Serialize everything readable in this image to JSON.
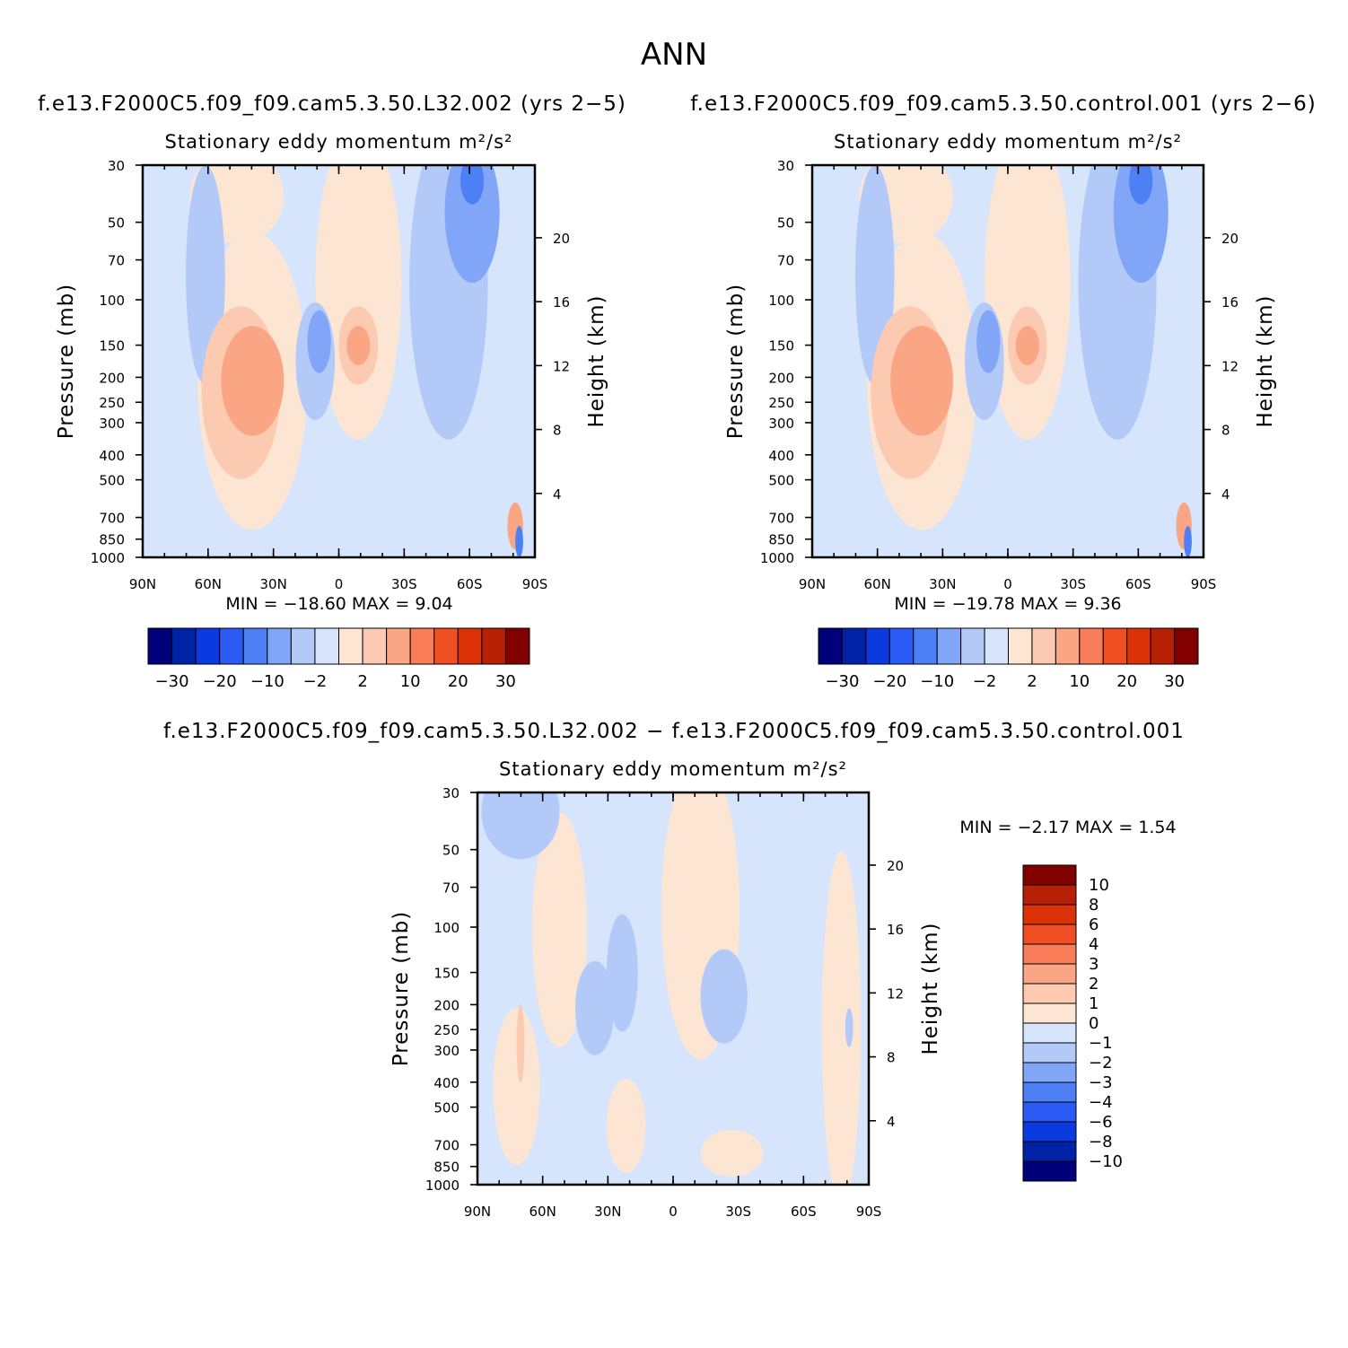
{
  "figure_title": "ANN",
  "chart_data": [
    {
      "type": "heatmap",
      "id": "panel-a",
      "title": "f.e13.F2000C5.f09_f09.cam5.3.50.L32.002 (yrs 2-5)",
      "subtitle": "Stationary eddy momentum",
      "units": "m²/s²",
      "xlabel": "",
      "ylabel": "Pressure (mb)",
      "y2label": "Height (km)",
      "x_ticks": [
        "90N",
        "60N",
        "30N",
        "0",
        "30S",
        "60S",
        "90S"
      ],
      "y_ticks": [
        30,
        50,
        70,
        100,
        150,
        200,
        250,
        300,
        400,
        500,
        700,
        850,
        1000
      ],
      "y2_ticks": [
        4,
        8,
        12,
        16,
        20
      ],
      "ylim": [
        1000,
        30
      ],
      "y_scale": "log",
      "min_text": "MIN = -18.60",
      "max_text": "MAX = 9.04",
      "min": -18.6,
      "max": 9.04,
      "colorbar": {
        "orientation": "horizontal",
        "levels": [
          -30,
          -25,
          -20,
          -15,
          -10,
          -5,
          -2,
          0,
          2,
          5,
          10,
          15,
          20,
          25,
          30
        ],
        "tick_labels": [
          "-30",
          "-20",
          "-10",
          "-2",
          "2",
          "10",
          "20",
          "30"
        ]
      }
    },
    {
      "type": "heatmap",
      "id": "panel-b",
      "title": "f.e13.F2000C5.f09_f09.cam5.3.50.control.001 (yrs 2-6)",
      "subtitle": "Stationary eddy momentum",
      "units": "m²/s²",
      "xlabel": "",
      "ylabel": "Pressure (mb)",
      "y2label": "Height (km)",
      "x_ticks": [
        "90N",
        "60N",
        "30N",
        "0",
        "30S",
        "60S",
        "90S"
      ],
      "y_ticks": [
        30,
        50,
        70,
        100,
        150,
        200,
        250,
        300,
        400,
        500,
        700,
        850,
        1000
      ],
      "y2_ticks": [
        4,
        8,
        12,
        16,
        20
      ],
      "ylim": [
        1000,
        30
      ],
      "y_scale": "log",
      "min_text": "MIN = -19.78",
      "max_text": "MAX = 9.36",
      "min": -19.78,
      "max": 9.36,
      "colorbar": {
        "orientation": "horizontal",
        "levels": [
          -30,
          -25,
          -20,
          -15,
          -10,
          -5,
          -2,
          0,
          2,
          5,
          10,
          15,
          20,
          25,
          30
        ],
        "tick_labels": [
          "-30",
          "-20",
          "-10",
          "-2",
          "2",
          "10",
          "20",
          "30"
        ]
      }
    },
    {
      "type": "heatmap",
      "id": "panel-diff",
      "title": "f.e13.F2000C5.f09_f09.cam5.3.50.L32.002 - f.e13.F2000C5.f09_f09.cam5.3.50.control.001",
      "subtitle": "Stationary eddy momentum",
      "units": "m²/s²",
      "xlabel": "",
      "ylabel": "Pressure (mb)",
      "y2label": "Height (km)",
      "x_ticks": [
        "90N",
        "60N",
        "30N",
        "0",
        "30S",
        "60S",
        "90S"
      ],
      "y_ticks": [
        30,
        50,
        70,
        100,
        150,
        200,
        250,
        300,
        400,
        500,
        700,
        850,
        1000
      ],
      "y2_ticks": [
        4,
        8,
        12,
        16,
        20
      ],
      "ylim": [
        1000,
        30
      ],
      "y_scale": "log",
      "min_text": "MIN = -2.17",
      "max_text": "MAX = 1.54",
      "min": -2.17,
      "max": 1.54,
      "colorbar": {
        "orientation": "vertical",
        "levels": [
          10,
          8,
          6,
          4,
          3,
          2,
          1,
          0,
          -1,
          -2,
          -3,
          -4,
          -6,
          -8,
          -10
        ],
        "tick_labels": [
          "10",
          "8",
          "6",
          "4",
          "3",
          "2",
          "1",
          "0",
          "-1",
          "-2",
          "-3",
          "-4",
          "-6",
          "-8",
          "-10"
        ]
      }
    }
  ],
  "colors": {
    "palette16": [
      "#00007a",
      "#0022a6",
      "#0a3ae0",
      "#2a5cf5",
      "#4d7ff5",
      "#82a6f7",
      "#b3caf9",
      "#d6e5fb",
      "#fde5d4",
      "#fcc9b1",
      "#faa584",
      "#f97d58",
      "#f04f24",
      "#dc3208",
      "#b82005",
      "#820000"
    ],
    "neg_fill": "#d6e5fb",
    "pos_fill": "#fde5d4"
  }
}
